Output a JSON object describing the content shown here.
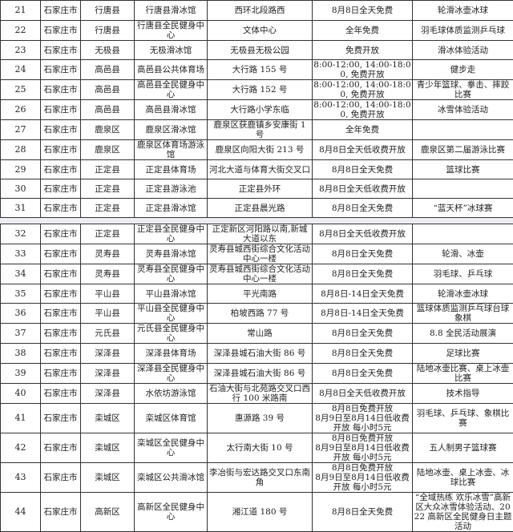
{
  "table_part1": [
    {
      "no": "21",
      "city": "石家庄市",
      "county": "行唐县",
      "venue": "行唐县滑冰馆",
      "address": "西环北段路西",
      "policy": "8月8日全天免费",
      "activity": "轮滑冰壶冰球"
    },
    {
      "no": "22",
      "city": "石家庄市",
      "county": "行唐县",
      "venue": "行唐县全民健身中心",
      "address": "文体中心",
      "policy": "全年免费",
      "activity": "羽毛球体质监测乒乓球"
    },
    {
      "no": "23",
      "city": "石家庄市",
      "county": "无极县",
      "venue": "无极滑冰馆",
      "address": "无极县无极公园",
      "policy": "免费开放",
      "activity": "滑冰体验活动"
    },
    {
      "no": "24",
      "city": "石家庄市",
      "county": "高邑县",
      "venue": "高邑县公共体育场",
      "address": "大行路 155 号",
      "policy": "8:00-12:00, 14:00-18:00, 免费开放",
      "activity": "健步走"
    },
    {
      "no": "25",
      "city": "石家庄市",
      "county": "高邑县",
      "venue": "高邑县全民健身中心",
      "address": "大行路 152 号",
      "policy": "8:00-12:00, 14:00-18:00, 免费开放",
      "activity": "青少年篮球、拳击、摔跤比赛"
    },
    {
      "no": "26",
      "city": "石家庄市",
      "county": "高邑县",
      "venue": "高邑县滑冰馆",
      "address": "大行路小学东临",
      "policy": "8:00-12:00, 14:00-18:00, 免费开放",
      "activity": "冰雪体验活动"
    },
    {
      "no": "27",
      "city": "石家庄市",
      "county": "鹿泉区",
      "venue": "鹿泉区滑冰馆",
      "address": "鹿泉区获鹿镇乡安康街 1 号",
      "policy": "全年免费",
      "activity": ""
    },
    {
      "no": "28",
      "city": "石家庄市",
      "county": "鹿泉区",
      "venue": "鹿泉区体育场游泳馆",
      "address": "鹿泉区向阳大街 213 号",
      "policy": "8月8日全天低收费开放",
      "activity": "鹿泉区第二届游泳比赛"
    },
    {
      "no": "29",
      "city": "石家庄市",
      "county": "正定县",
      "venue": "正定县体育场",
      "address": "河北大道与体育大街交叉口",
      "policy": "8月8日全天免费",
      "activity": "篮球比赛"
    },
    {
      "no": "30",
      "city": "石家庄市",
      "county": "正定县",
      "venue": "正定县游泳池",
      "address": "正定县外环",
      "policy": "8月8日全天低收费开放",
      "activity": ""
    },
    {
      "no": "31",
      "city": "石家庄市",
      "county": "正定县",
      "venue": "正定县滑冰馆",
      "address": "正定县晨光路",
      "policy": "8月8日全天免费",
      "activity": "“蓝天杯”冰球赛"
    }
  ],
  "table_part2": [
    {
      "no": "32",
      "city": "石家庄市",
      "county": "正定县",
      "venue": "正定县全民健身中心",
      "address": "正定新区河阳路以南,新城大道以东",
      "policy": "8月8日全天低收费开放",
      "activity": ""
    },
    {
      "no": "33",
      "city": "石家庄市",
      "county": "灵寿县",
      "venue": "灵寿县滑冰馆",
      "address": "灵寿县城西街综合文化活动中心一楼",
      "policy": "8月8日全天免费",
      "activity": "轮滑、冰壶"
    },
    {
      "no": "34",
      "city": "石家庄市",
      "county": "灵寿县",
      "venue": "灵寿县全民健身中心",
      "address": "灵寿县城西街综合文化活动中心一楼",
      "policy": "8月8日全天免费",
      "activity": "羽毛球、乒乓球"
    },
    {
      "no": "35",
      "city": "石家庄市",
      "county": "平山县",
      "venue": "平山县滑冰馆",
      "address": "平光南路",
      "policy": "8月8日-14日全天免费",
      "activity": "轮滑冰壶冰球"
    },
    {
      "no": "36",
      "city": "石家庄市",
      "county": "平山县",
      "venue": "平山县全民健身中心",
      "address": "柏坡西路 77 号",
      "policy": "8月8日-14日全天免费",
      "activity": "篮球体质监测乒乓球台球象棋"
    },
    {
      "no": "37",
      "city": "石家庄市",
      "county": "元氏县",
      "venue": "元氏县全民健身中心",
      "address": "常山路",
      "policy": "8月8日全天免费",
      "activity": "8.8 全民活动展演"
    },
    {
      "no": "38",
      "city": "石家庄市",
      "county": "深泽县",
      "venue": "深泽县体育场",
      "address": "深泽县城石油大街 86 号",
      "policy": "8月8日全天免费",
      "activity": "足球比赛"
    },
    {
      "no": "39",
      "city": "石家庄市",
      "county": "深泽县",
      "venue": "深泽县全民健身中心",
      "address": "深泽县城石油大街 86 号",
      "policy": "8月8日全天免费",
      "activity": "陆地冰壶比赛、桌上冰壶比赛"
    },
    {
      "no": "40",
      "city": "石家庄市",
      "county": "深泽县",
      "venue": "水依坊游泳馆",
      "address": "石油大街与北苑路交叉口西行 100 米路南",
      "policy": "8月8日全天低收费开放",
      "activity": "技术指导"
    },
    {
      "no": "41",
      "city": "石家庄市",
      "county": "栾城区",
      "venue": "栾城区体育馆",
      "address": "惠源路 39 号",
      "policy": "8月8日免费开放\n8月9日至8月14日低收费开放 每小时5元",
      "activity": "羽毛球、乒乓球、象棋比赛"
    },
    {
      "no": "42",
      "city": "石家庄市",
      "county": "栾城区",
      "venue": "栾城区全民健身中心",
      "address": "太行南大街 10 号",
      "policy": "8月8日免费开放\n8月9日至8月14日低收费开放 每小时5元",
      "activity": "五人制男子篮球赛"
    },
    {
      "no": "43",
      "city": "石家庄市",
      "county": "栾城区",
      "venue": "栾城区公共滑冰馆",
      "address": "李冶街与宏达路交叉口东南角",
      "policy": "8月8日免费开放\n8月9日至8月14日低收费开放 每小时5元",
      "activity": "陆地冰壶、桌上冰壶、冰球比赛"
    },
    {
      "no": "44",
      "city": "石家庄市",
      "county": "高新区",
      "venue": "高新区全民健身中心",
      "address": "湘江道 180 号",
      "policy": "8月8日全天免费",
      "activity": "“全域热练 欢乐冰雪”高新区大众冰雪体验活动、2022 高新区全民健身日主题活动"
    }
  ]
}
